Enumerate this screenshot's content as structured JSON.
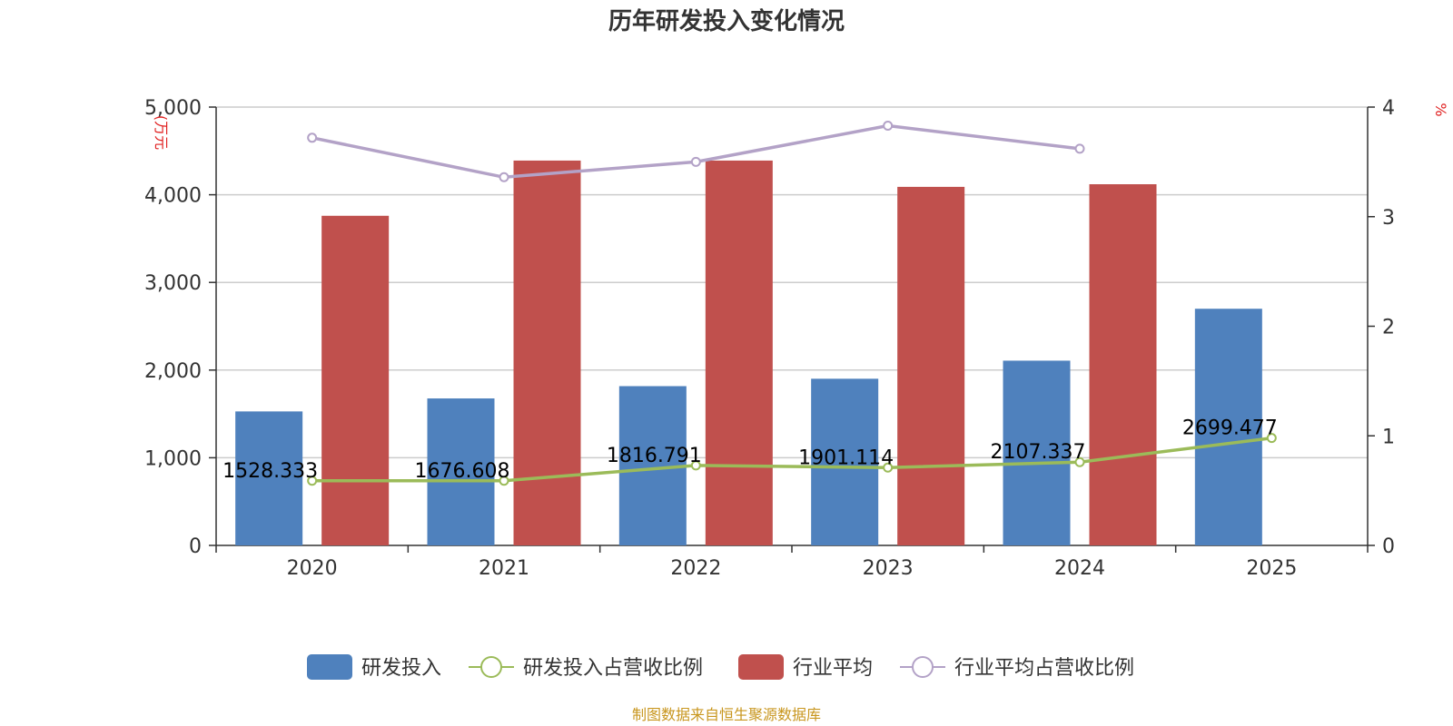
{
  "chart_data": {
    "type": "bar",
    "title": "历年研发投入变化情况",
    "categories": [
      "2020",
      "2021",
      "2022",
      "2023",
      "2024",
      "2025"
    ],
    "y_left": {
      "unit_label": "(万元",
      "ylim": [
        0,
        5000
      ],
      "ticks": [
        "0",
        "1,000",
        "2,000",
        "3,000",
        "4,000",
        "5,000"
      ]
    },
    "y_right": {
      "unit_label": "%",
      "ylim": [
        0,
        4
      ],
      "ticks": [
        "0",
        "1",
        "2",
        "3",
        "4"
      ]
    },
    "series": [
      {
        "name": "研发投入",
        "kind": "bar",
        "axis": "left",
        "color": "#4f81bd",
        "values": [
          1528.333,
          1676.608,
          1816.791,
          1901.114,
          2107.337,
          2699.477
        ],
        "labels": [
          "1528.333",
          "1676.608",
          "1816.791",
          "1901.114",
          "2107.337",
          "2699.477"
        ]
      },
      {
        "name": "研发投入占营收比例",
        "kind": "line",
        "axis": "right",
        "color": "#9bbb59",
        "values": [
          0.59,
          0.59,
          0.73,
          0.71,
          0.76,
          0.98
        ]
      },
      {
        "name": "行业平均",
        "kind": "bar",
        "axis": "left",
        "color": "#c0504d",
        "values": [
          3760,
          4390,
          4390,
          4090,
          4120,
          null
        ]
      },
      {
        "name": "行业平均占营收比例",
        "kind": "line",
        "axis": "right",
        "color": "#b3a2c7",
        "values": [
          3.72,
          3.36,
          3.5,
          3.83,
          3.62,
          null
        ]
      }
    ],
    "grid": true,
    "legend_position": "bottom"
  },
  "source_note": "制图数据来自恒生聚源数据库"
}
